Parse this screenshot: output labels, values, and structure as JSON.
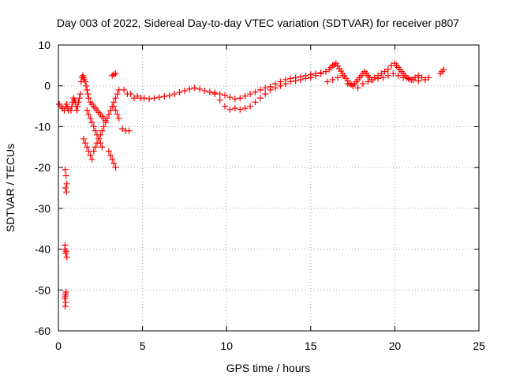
{
  "chart_data": {
    "type": "scatter",
    "title": "Day 003 of 2022, Sidereal Day-to-day VTEC variation (SDTVAR) for receiver p807",
    "xlabel": "GPS time / hours",
    "ylabel": "SDTVAR / TECUs",
    "xlim": [
      0,
      25
    ],
    "ylim": [
      -60,
      10
    ],
    "xticks": [
      0,
      5,
      10,
      15,
      20,
      25
    ],
    "yticks": [
      10,
      0,
      -10,
      -20,
      -30,
      -40,
      -50,
      -60
    ],
    "grid": true,
    "marker": "+",
    "color": "#ff0000",
    "series": [
      {
        "name": "SDTVAR",
        "x": [
          0.05,
          0.15,
          0.25,
          0.35,
          0.45,
          0.5,
          0.55,
          0.6,
          0.4,
          0.45,
          0.5,
          0.42,
          0.48,
          0.38,
          0.44,
          0.5,
          0.4,
          0.46,
          0.42,
          0.38,
          0.44,
          0.4,
          0.46,
          0.42,
          0.75,
          0.8,
          0.85,
          0.9,
          0.95,
          1.0,
          1.05,
          1.1,
          1.15,
          1.2,
          1.25,
          1.3,
          1.35,
          1.4,
          1.45,
          1.5,
          1.55,
          1.6,
          1.65,
          1.7,
          1.75,
          1.8,
          1.9,
          2.0,
          2.1,
          2.2,
          2.3,
          2.4,
          2.5,
          2.6,
          2.7,
          2.8,
          1.7,
          1.8,
          1.9,
          2.0,
          2.1,
          2.2,
          2.3,
          2.4,
          2.5,
          2.6,
          1.5,
          1.6,
          1.7,
          1.8,
          1.9,
          2.0,
          2.1,
          2.2,
          2.3,
          2.4,
          2.5,
          2.6,
          2.7,
          2.8,
          2.9,
          3.0,
          3.1,
          3.2,
          3.3,
          3.4,
          3.5,
          3.6,
          3.0,
          3.1,
          3.2,
          3.3,
          3.4,
          3.3,
          3.4,
          3.5,
          3.6,
          3.2,
          3.3,
          3.4,
          3.8,
          4.0,
          4.2,
          3.9,
          4.1,
          4.3,
          4.5,
          4.7,
          4.9,
          5.1,
          5.4,
          5.7,
          6.0,
          6.3,
          6.6,
          6.9,
          7.2,
          7.5,
          7.8,
          8.1,
          8.4,
          8.7,
          9.0,
          9.3,
          9.6,
          9.9,
          10.2,
          10.5,
          10.8,
          11.1,
          11.4,
          11.7,
          12.0,
          12.3,
          12.6,
          12.9,
          13.2,
          13.5,
          13.8,
          14.1,
          14.4,
          14.7,
          15.0,
          15.3,
          15.6,
          9.0,
          9.3,
          9.6,
          9.9,
          10.2,
          10.5,
          10.8,
          11.1,
          11.4,
          11.7,
          12.0,
          12.3,
          12.6,
          12.9,
          13.2,
          13.5,
          13.8,
          14.1,
          14.4,
          14.7,
          15.0,
          15.3,
          15.6,
          15.9,
          16.1,
          16.2,
          16.3,
          16.4,
          16.5,
          16.6,
          16.7,
          16.8,
          16.9,
          17.0,
          17.1,
          17.2,
          17.3,
          17.4,
          17.5,
          17.6,
          17.7,
          17.8,
          17.9,
          18.0,
          18.1,
          18.2,
          18.3,
          18.4,
          18.5,
          18.6,
          18.8,
          19.0,
          19.2,
          19.4,
          19.6,
          19.8,
          20.0,
          20.1,
          20.2,
          20.3,
          20.4,
          20.5,
          20.6,
          20.7,
          20.8,
          20.9,
          21.0,
          21.2,
          21.4,
          21.6,
          21.8,
          22.0,
          22.7,
          22.8,
          22.9,
          16.0,
          16.3,
          16.6,
          16.9,
          17.2,
          17.5,
          17.8,
          18.1,
          18.4,
          18.7,
          19.0,
          19.3,
          19.6,
          19.9,
          20.2,
          20.5,
          20.8,
          21.1,
          21.4
        ],
        "y": [
          -4.5,
          -5,
          -5.5,
          -6,
          -5,
          -4.5,
          -5.5,
          -6,
          -20.5,
          -22,
          -24,
          -25,
          -26,
          -40,
          -41,
          -42,
          -39,
          -40.5,
          -51,
          -52,
          -53,
          -54,
          -50.5,
          -51.5,
          -6,
          -5,
          -4,
          -3,
          -3.5,
          -4,
          -5,
          -6,
          -5,
          -4,
          -3,
          -2,
          1,
          2,
          2.5,
          2,
          1.5,
          1,
          0,
          -1,
          -2,
          -3,
          -4,
          -4.5,
          -5,
          -5.5,
          -6,
          -6.5,
          -7,
          -7.5,
          -8,
          -8.5,
          -6,
          -7,
          -8,
          -9,
          -10,
          -11,
          -12,
          -13,
          -14,
          -15,
          -13,
          -14,
          -15,
          -16,
          -17,
          -18,
          -16,
          -15,
          -14,
          -13,
          -12,
          -11,
          -10,
          -9,
          -8,
          -7,
          -6,
          -5,
          -4,
          -3,
          -2,
          -1,
          -16,
          -17,
          -18,
          -19,
          -20,
          -5,
          -6,
          -7,
          -8,
          2.5,
          2.8,
          3,
          -10.5,
          -11,
          -11,
          -1,
          -2,
          -2,
          -3,
          -2.5,
          -3,
          -3,
          -3.2,
          -3,
          -2.8,
          -2.6,
          -2.4,
          -2,
          -1.6,
          -1.2,
          -0.8,
          -0.5,
          -0.8,
          -1.2,
          -1.5,
          -1.7,
          -2,
          -2.3,
          -2.8,
          -3.2,
          -3,
          -2.5,
          -2,
          -1.5,
          -1,
          -0.5,
          -0.2,
          0.5,
          1,
          1.5,
          1.8,
          2,
          2.2,
          2.5,
          2.8,
          3,
          3.2,
          -1.5,
          -2,
          -3.5,
          -5,
          -5.8,
          -5.5,
          -5.8,
          -5.5,
          -5,
          -4,
          -3,
          -2,
          -1,
          -0.5,
          0,
          0.5,
          1,
          1.2,
          1.5,
          1.8,
          2,
          2.5,
          3,
          3.5,
          4,
          4.5,
          5,
          5.2,
          5.5,
          4.8,
          4.2,
          3.6,
          3,
          2.4,
          1.8,
          1.2,
          0.6,
          0.3,
          0,
          0.5,
          1,
          1.5,
          2,
          2.5,
          3,
          3.5,
          3,
          2.5,
          2,
          1.5,
          2,
          2.5,
          3,
          3.5,
          4,
          5,
          5.5,
          5,
          4.5,
          4,
          3.5,
          3,
          2.5,
          2,
          1.8,
          1.6,
          1.5,
          2,
          2.5,
          2,
          1.5,
          2,
          3,
          3.5,
          4,
          1,
          1.5,
          2,
          2.5,
          0.5,
          0,
          -0.5,
          0.5,
          1,
          1.5,
          1.8,
          2,
          2.5,
          3,
          2.5,
          2,
          1.8,
          1.5,
          1.2
        ]
      }
    ]
  }
}
